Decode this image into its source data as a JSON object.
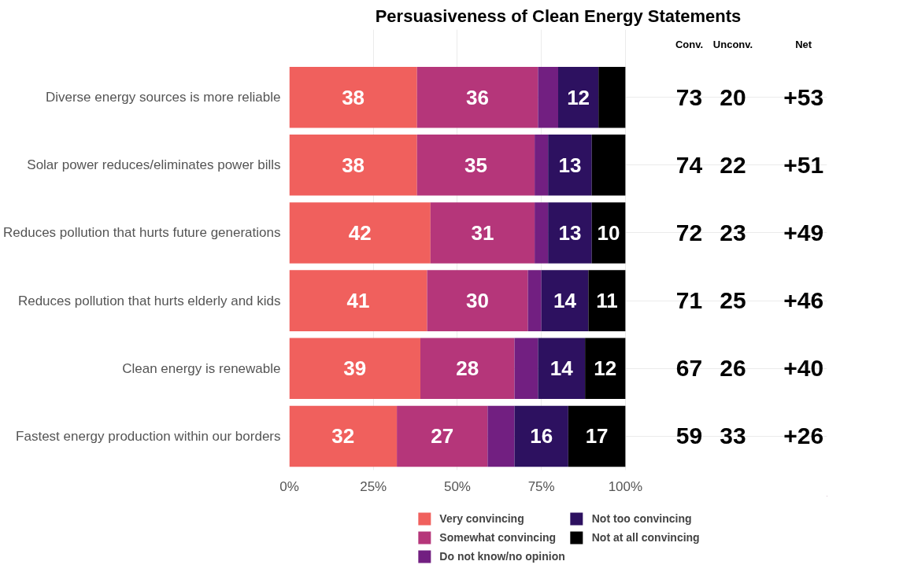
{
  "chart_data": {
    "type": "bar",
    "orientation": "horizontal",
    "stacked": true,
    "title": "Persuasiveness of Clean Energy Statements",
    "categories": [
      "Diverse energy sources is more reliable",
      "Solar power reduces/eliminates power bills",
      "Reduces pollution that hurts future generations",
      "Reduces pollution that hurts elderly and kids",
      "Clean energy is renewable",
      "Fastest energy production within our borders"
    ],
    "series": [
      {
        "name": "Very convincing",
        "color": "#f0605d",
        "values": [
          38,
          38,
          42,
          41,
          39,
          32
        ],
        "value_labels": [
          "38",
          "38",
          "42",
          "41",
          "39",
          "32"
        ]
      },
      {
        "name": "Somewhat convincing",
        "color": "#b5367a",
        "values": [
          36,
          35,
          31,
          30,
          28,
          27
        ],
        "value_labels": [
          "36",
          "35",
          "31",
          "30",
          "28",
          "27"
        ]
      },
      {
        "name": "Do not know/no opinion",
        "color": "#721f81",
        "values": [
          6,
          4,
          4,
          4,
          7,
          8
        ],
        "value_labels": [
          null,
          null,
          null,
          null,
          null,
          null
        ]
      },
      {
        "name": "Not too convincing",
        "color": "#2d1160",
        "values": [
          12,
          13,
          13,
          14,
          14,
          16
        ],
        "value_labels": [
          "12",
          "13",
          "13",
          "14",
          "14",
          "16"
        ]
      },
      {
        "name": "Not at all convincing",
        "color": "#000000",
        "values": [
          8,
          10,
          10,
          11,
          12,
          17
        ],
        "value_labels": [
          null,
          null,
          "10",
          "11",
          "12",
          "17"
        ]
      }
    ],
    "xlim": [
      0,
      100
    ],
    "xticks": [
      {
        "value": 0,
        "label": "0%"
      },
      {
        "value": 25,
        "label": "25%"
      },
      {
        "value": 50,
        "label": "50%"
      },
      {
        "value": 75,
        "label": "75%"
      },
      {
        "value": 100,
        "label": "100%"
      }
    ],
    "grid": true,
    "legend": "bottom",
    "annotations": [
      "Conv.",
      "Unconv.",
      "Net",
      "73",
      "20",
      "+53",
      "74",
      "22",
      "+51",
      "72",
      "23",
      "+49",
      "71",
      "25",
      "+46",
      "67",
      "26",
      "+40",
      "59",
      "33",
      "+26"
    ]
  }
}
